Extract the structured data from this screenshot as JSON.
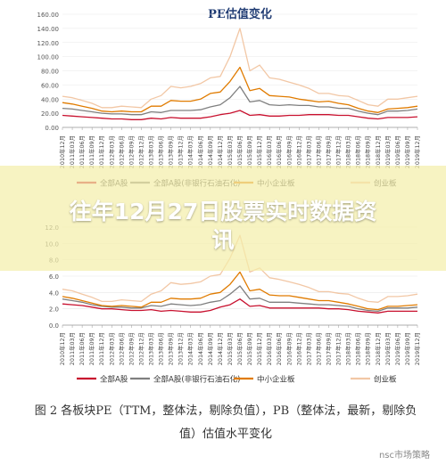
{
  "banner": {
    "title_line1": "往年12月27日股票实时数据资",
    "title_line2": "讯"
  },
  "caption": {
    "line1": "图 2  各板块PE（TTM，整体法，剔除负值），PB（整体法，最新，剔除负",
    "line2": "值）估值水平变化"
  },
  "watermark": "nsc市场策略",
  "colors": {
    "a": "#c8102e",
    "b": "#7f7f7f",
    "c": "#e07b00",
    "d": "#f2c7a5",
    "banner": "#f4eeaa"
  },
  "chart_data": [
    {
      "type": "line",
      "title": "PE估值变化",
      "ylim": [
        0,
        160
      ],
      "yticks": [
        "0.00",
        "20.00",
        "40.00",
        "60.00",
        "80.00",
        "100.00",
        "120.00",
        "140.00",
        "160.00"
      ],
      "x": [
        "2010年12月",
        "2011年03月",
        "2011年06月",
        "2011年09月",
        "2011年12月",
        "2012年03月",
        "2012年06月",
        "2012年09月",
        "2012年12月",
        "2013年03月",
        "2013年06月",
        "2013年09月",
        "2013年12月",
        "2014年03月",
        "2014年06月",
        "2014年09月",
        "2014年12月",
        "2015年03月",
        "2015年06月",
        "2015年09月",
        "2015年12月",
        "2016年03月",
        "2016年06月",
        "2016年09月",
        "2016年12月",
        "2017年03月",
        "2017年06月",
        "2017年09月",
        "2017年12月",
        "2018年03月",
        "2018年06月",
        "2018年09月",
        "2018年12月",
        "2019年03月",
        "2019年06月",
        "2019年09月",
        "2019年12月"
      ],
      "series": [
        {
          "name": "全部A股",
          "values": [
            17,
            16,
            15,
            14,
            13,
            12,
            12,
            11,
            11,
            13,
            12,
            14,
            13,
            13,
            13,
            15,
            18,
            20,
            24,
            17,
            18,
            16,
            16,
            17,
            17,
            18,
            18,
            18,
            17,
            17,
            15,
            13,
            12,
            14,
            14,
            14,
            15
          ]
        },
        {
          "name": "全部A股(非银行石油石化)",
          "values": [
            27,
            26,
            24,
            22,
            20,
            19,
            19,
            18,
            18,
            22,
            21,
            24,
            24,
            24,
            25,
            29,
            32,
            42,
            58,
            36,
            38,
            32,
            31,
            32,
            31,
            31,
            29,
            29,
            27,
            27,
            23,
            20,
            18,
            23,
            23,
            24,
            26
          ]
        },
        {
          "name": "中小企业板",
          "values": [
            35,
            33,
            30,
            27,
            23,
            22,
            23,
            22,
            22,
            30,
            30,
            38,
            37,
            37,
            40,
            48,
            50,
            65,
            85,
            52,
            55,
            45,
            44,
            43,
            40,
            38,
            36,
            37,
            34,
            32,
            27,
            23,
            21,
            26,
            27,
            28,
            30
          ]
        },
        {
          "name": "创业板",
          "values": [
            44,
            42,
            38,
            34,
            28,
            28,
            30,
            29,
            28,
            40,
            45,
            58,
            56,
            58,
            62,
            70,
            72,
            100,
            140,
            80,
            88,
            70,
            68,
            64,
            60,
            55,
            48,
            48,
            45,
            44,
            38,
            32,
            30,
            40,
            40,
            42,
            44
          ]
        }
      ]
    },
    {
      "type": "line",
      "title": "",
      "ylim": [
        0,
        12
      ],
      "yticks": [
        "0.0",
        "2.0",
        "4.0",
        "6.0",
        "8.0",
        "10.0",
        "12.0"
      ],
      "x": [
        "2010年12月",
        "2011年03月",
        "2011年06月",
        "2011年09月",
        "2011年12月",
        "2012年03月",
        "2012年06月",
        "2012年09月",
        "2012年12月",
        "2013年03月",
        "2013年06月",
        "2013年09月",
        "2013年12月",
        "2014年03月",
        "2014年06月",
        "2014年09月",
        "2014年12月",
        "2015年03月",
        "2015年06月",
        "2015年09月",
        "2015年12月",
        "2016年03月",
        "2016年06月",
        "2016年09月",
        "2016年12月",
        "2017年03月",
        "2017年06月",
        "2017年09月",
        "2017年12月",
        "2018年03月",
        "2018年06月",
        "2018年09月",
        "2018年12月",
        "2019年03月",
        "2019年06月",
        "2019年09月",
        "2019年12月"
      ],
      "series": [
        {
          "name": "全部A股",
          "values": [
            2.6,
            2.5,
            2.4,
            2.2,
            2.0,
            2.0,
            1.9,
            1.8,
            1.8,
            1.9,
            1.7,
            1.8,
            1.7,
            1.6,
            1.6,
            1.8,
            2.2,
            2.5,
            3.2,
            2.3,
            2.4,
            2.1,
            2.1,
            2.1,
            2.1,
            2.1,
            2.1,
            2.0,
            2.0,
            1.9,
            1.7,
            1.6,
            1.5,
            1.7,
            1.7,
            1.7,
            1.7
          ]
        },
        {
          "name": "全部A股(非银行石油石化)",
          "values": [
            3.2,
            3.0,
            2.8,
            2.5,
            2.3,
            2.2,
            2.2,
            2.1,
            2.1,
            2.4,
            2.3,
            2.6,
            2.5,
            2.4,
            2.5,
            2.8,
            3.0,
            3.8,
            4.8,
            3.2,
            3.3,
            2.8,
            2.8,
            2.8,
            2.7,
            2.6,
            2.5,
            2.5,
            2.4,
            2.3,
            2.0,
            1.8,
            1.7,
            2.1,
            2.1,
            2.1,
            2.2
          ]
        },
        {
          "name": "中小企业板",
          "values": [
            3.5,
            3.3,
            3.0,
            2.7,
            2.4,
            2.3,
            2.4,
            2.3,
            2.2,
            2.8,
            2.8,
            3.3,
            3.2,
            3.2,
            3.3,
            3.8,
            4.0,
            5.0,
            6.5,
            4.2,
            4.4,
            3.7,
            3.6,
            3.6,
            3.4,
            3.2,
            3.0,
            3.0,
            2.8,
            2.6,
            2.3,
            2.0,
            1.9,
            2.3,
            2.3,
            2.4,
            2.5
          ]
        },
        {
          "name": "创业板",
          "values": [
            4.4,
            4.2,
            3.8,
            3.4,
            2.9,
            2.9,
            3.1,
            3.0,
            2.9,
            3.8,
            4.2,
            5.2,
            5.0,
            5.1,
            5.3,
            6.0,
            6.2,
            8.2,
            11.0,
            6.5,
            7.0,
            5.8,
            5.6,
            5.3,
            5.0,
            4.6,
            4.1,
            4.1,
            3.9,
            3.8,
            3.3,
            2.9,
            2.8,
            3.5,
            3.5,
            3.6,
            3.8
          ]
        }
      ]
    }
  ]
}
